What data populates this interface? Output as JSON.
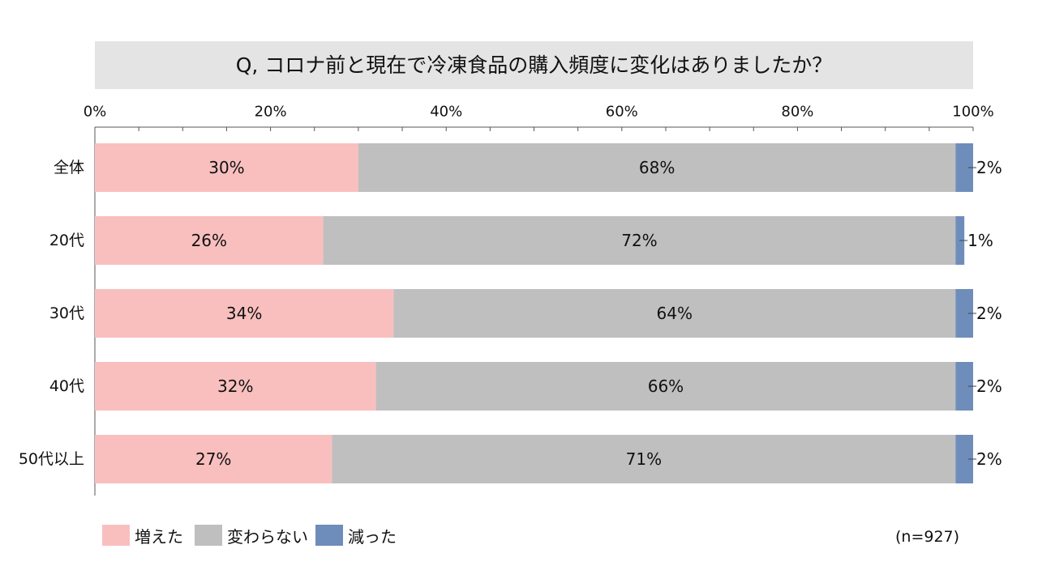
{
  "title": "Q, コロナ前と現在で冷凍食品の購入頻度に変化はありましたか？",
  "note": "(n=927)",
  "colors": {
    "increased": "#f9bfbf",
    "unchanged": "#bfbfbf",
    "decreased": "#6e8dba"
  },
  "chart_data": {
    "type": "bar",
    "orientation": "horizontal",
    "stacked": true,
    "categories": [
      "全体",
      "20代",
      "30代",
      "40代",
      "50代以上"
    ],
    "series": [
      {
        "name": "増えた",
        "values": [
          30,
          26,
          34,
          32,
          27
        ],
        "labels": [
          "30%",
          "26%",
          "34%",
          "32%",
          "27%"
        ]
      },
      {
        "name": "変わらない",
        "values": [
          68,
          72,
          64,
          66,
          71
        ],
        "labels": [
          "68%",
          "72%",
          "64%",
          "66%",
          "71%"
        ]
      },
      {
        "name": "減った",
        "values": [
          2,
          1,
          2,
          2,
          2
        ],
        "labels": [
          "2%",
          "1%",
          "2%",
          "2%",
          "2%"
        ]
      }
    ],
    "xlim": [
      0,
      100
    ],
    "xticks": [
      "0%",
      "20%",
      "40%",
      "60%",
      "80%",
      "100%"
    ],
    "legend_position": "bottom-left"
  }
}
